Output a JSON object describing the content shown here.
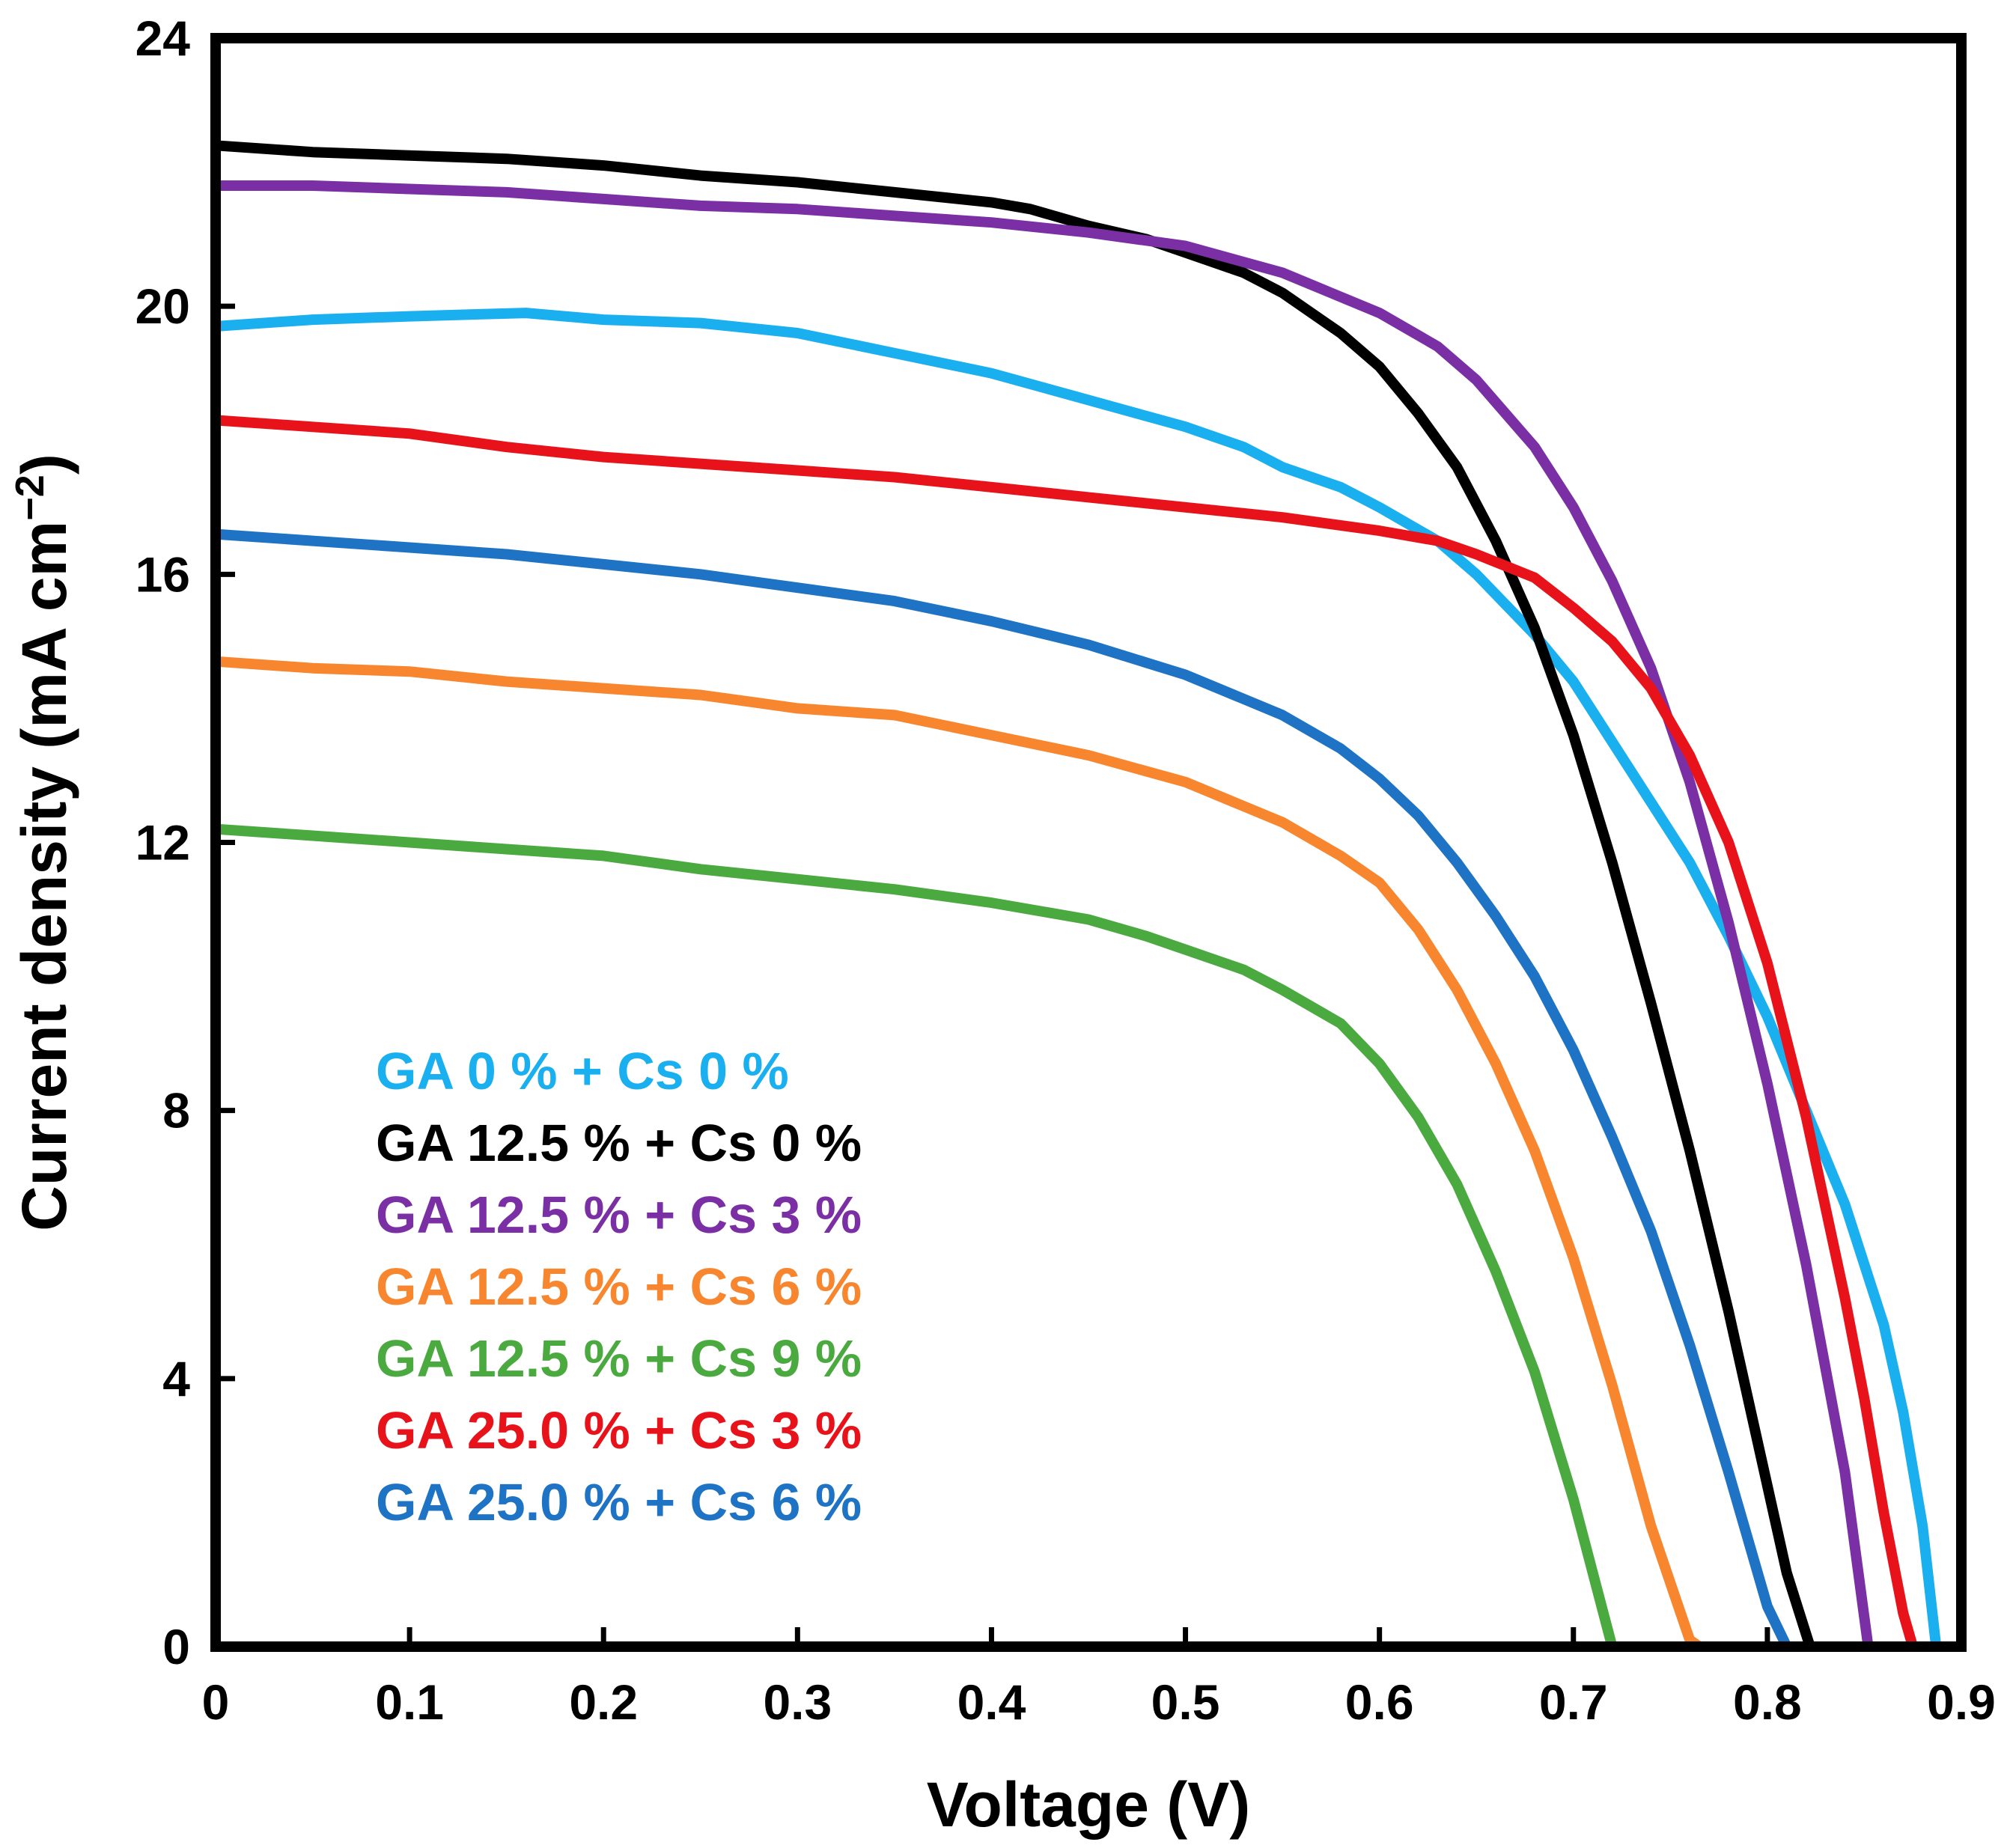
{
  "chart_data": {
    "type": "line",
    "title": "",
    "xlabel": "Voltage (V)",
    "ylabel_main": "Current density (mA cm",
    "ylabel_sup": "−2",
    "ylabel_close": ")",
    "xlim": [
      0,
      0.9
    ],
    "ylim": [
      0,
      24
    ],
    "xticks": [
      0,
      0.1,
      0.2,
      0.3,
      0.4,
      0.5,
      0.6,
      0.7,
      0.8,
      0.9
    ],
    "xtick_labels": [
      "0",
      "0.1",
      "0.2",
      "0.3",
      "0.4",
      "0.5",
      "0.6",
      "0.7",
      "0.8",
      "0.9"
    ],
    "yticks": [
      0,
      4,
      8,
      12,
      16,
      20,
      24
    ],
    "ytick_labels": [
      "0",
      "4",
      "8",
      "12",
      "16",
      "20",
      "24"
    ],
    "grid": false,
    "legend_position": "bottom-left",
    "series": [
      {
        "name": "GA 0 % + Cs 0 %",
        "color": "#1AAFEF",
        "x": [
          0,
          0.05,
          0.1,
          0.16,
          0.2,
          0.25,
          0.3,
          0.35,
          0.4,
          0.45,
          0.5,
          0.53,
          0.55,
          0.58,
          0.6,
          0.63,
          0.65,
          0.68,
          0.7,
          0.72,
          0.74,
          0.76,
          0.78,
          0.8,
          0.82,
          0.84,
          0.86,
          0.87,
          0.88,
          0.887
        ],
        "y": [
          19.7,
          19.8,
          19.85,
          19.9,
          19.8,
          19.75,
          19.6,
          19.3,
          19.0,
          18.6,
          18.2,
          17.9,
          17.6,
          17.3,
          17.0,
          16.5,
          16.0,
          15.1,
          14.4,
          13.5,
          12.6,
          11.7,
          10.6,
          9.4,
          8.0,
          6.6,
          4.8,
          3.5,
          1.8,
          0
        ]
      },
      {
        "name": "GA 12.5 % + Cs 0 %",
        "color": "#000000",
        "x": [
          0,
          0.05,
          0.1,
          0.15,
          0.2,
          0.25,
          0.3,
          0.35,
          0.4,
          0.42,
          0.45,
          0.48,
          0.5,
          0.53,
          0.55,
          0.58,
          0.6,
          0.62,
          0.64,
          0.66,
          0.68,
          0.7,
          0.72,
          0.74,
          0.76,
          0.78,
          0.8,
          0.81,
          0.822
        ],
        "y": [
          22.4,
          22.3,
          22.25,
          22.2,
          22.1,
          21.95,
          21.85,
          21.7,
          21.55,
          21.45,
          21.2,
          21.0,
          20.8,
          20.5,
          20.2,
          19.6,
          19.1,
          18.4,
          17.6,
          16.5,
          15.2,
          13.6,
          11.7,
          9.6,
          7.4,
          5.0,
          2.4,
          1.1,
          0
        ]
      },
      {
        "name": "GA 12.5 % + Cs 3 %",
        "color": "#7B2FA5",
        "x": [
          0,
          0.05,
          0.1,
          0.15,
          0.2,
          0.25,
          0.3,
          0.35,
          0.4,
          0.45,
          0.5,
          0.55,
          0.6,
          0.63,
          0.65,
          0.68,
          0.7,
          0.72,
          0.74,
          0.76,
          0.78,
          0.8,
          0.82,
          0.84,
          0.852
        ],
        "y": [
          21.8,
          21.8,
          21.75,
          21.7,
          21.6,
          21.5,
          21.45,
          21.35,
          21.25,
          21.1,
          20.9,
          20.5,
          19.9,
          19.4,
          18.9,
          17.9,
          17.0,
          15.9,
          14.6,
          12.9,
          10.8,
          8.4,
          5.7,
          2.6,
          0
        ]
      },
      {
        "name": "GA 12.5 % + Cs 6 %",
        "color": "#F7862F",
        "x": [
          0,
          0.05,
          0.1,
          0.15,
          0.2,
          0.25,
          0.3,
          0.35,
          0.4,
          0.45,
          0.5,
          0.55,
          0.58,
          0.6,
          0.62,
          0.64,
          0.66,
          0.68,
          0.7,
          0.72,
          0.74,
          0.76,
          0.765
        ],
        "y": [
          14.7,
          14.6,
          14.55,
          14.4,
          14.3,
          14.2,
          14.0,
          13.9,
          13.6,
          13.3,
          12.9,
          12.3,
          11.8,
          11.4,
          10.7,
          9.8,
          8.7,
          7.4,
          5.8,
          3.9,
          1.8,
          0.1,
          0
        ]
      },
      {
        "name": "GA 12.5 % + Cs 9 %",
        "color": "#4AAA3F",
        "x": [
          0,
          0.05,
          0.1,
          0.15,
          0.2,
          0.25,
          0.3,
          0.35,
          0.4,
          0.45,
          0.48,
          0.5,
          0.53,
          0.55,
          0.58,
          0.6,
          0.62,
          0.64,
          0.66,
          0.68,
          0.7,
          0.71,
          0.72
        ],
        "y": [
          12.2,
          12.1,
          12.0,
          11.9,
          11.8,
          11.6,
          11.45,
          11.3,
          11.1,
          10.85,
          10.6,
          10.4,
          10.1,
          9.8,
          9.3,
          8.7,
          7.9,
          6.9,
          5.6,
          4.1,
          2.2,
          1.1,
          0
        ]
      },
      {
        "name": "GA 25.0 % + Cs 3 %",
        "color": "#E8131A",
        "x": [
          0,
          0.05,
          0.1,
          0.15,
          0.2,
          0.25,
          0.3,
          0.35,
          0.4,
          0.45,
          0.5,
          0.55,
          0.6,
          0.63,
          0.65,
          0.68,
          0.7,
          0.72,
          0.74,
          0.76,
          0.78,
          0.8,
          0.82,
          0.84,
          0.85,
          0.86,
          0.87,
          0.875
        ],
        "y": [
          18.3,
          18.2,
          18.1,
          17.9,
          17.75,
          17.65,
          17.55,
          17.45,
          17.3,
          17.15,
          17.0,
          16.85,
          16.65,
          16.5,
          16.3,
          15.95,
          15.5,
          15.0,
          14.3,
          13.3,
          12.0,
          10.2,
          7.9,
          5.2,
          3.7,
          2.0,
          0.5,
          0
        ]
      },
      {
        "name": "GA 25.0 % + Cs 6 %",
        "color": "#1E73C4",
        "x": [
          0,
          0.05,
          0.1,
          0.15,
          0.2,
          0.25,
          0.3,
          0.35,
          0.4,
          0.45,
          0.5,
          0.55,
          0.58,
          0.6,
          0.62,
          0.64,
          0.66,
          0.68,
          0.7,
          0.72,
          0.74,
          0.76,
          0.78,
          0.8,
          0.81
        ],
        "y": [
          16.6,
          16.5,
          16.4,
          16.3,
          16.15,
          16.0,
          15.8,
          15.6,
          15.3,
          14.95,
          14.5,
          13.9,
          13.4,
          12.95,
          12.4,
          11.7,
          10.9,
          10.0,
          8.9,
          7.6,
          6.2,
          4.5,
          2.6,
          0.6,
          0
        ]
      }
    ]
  }
}
